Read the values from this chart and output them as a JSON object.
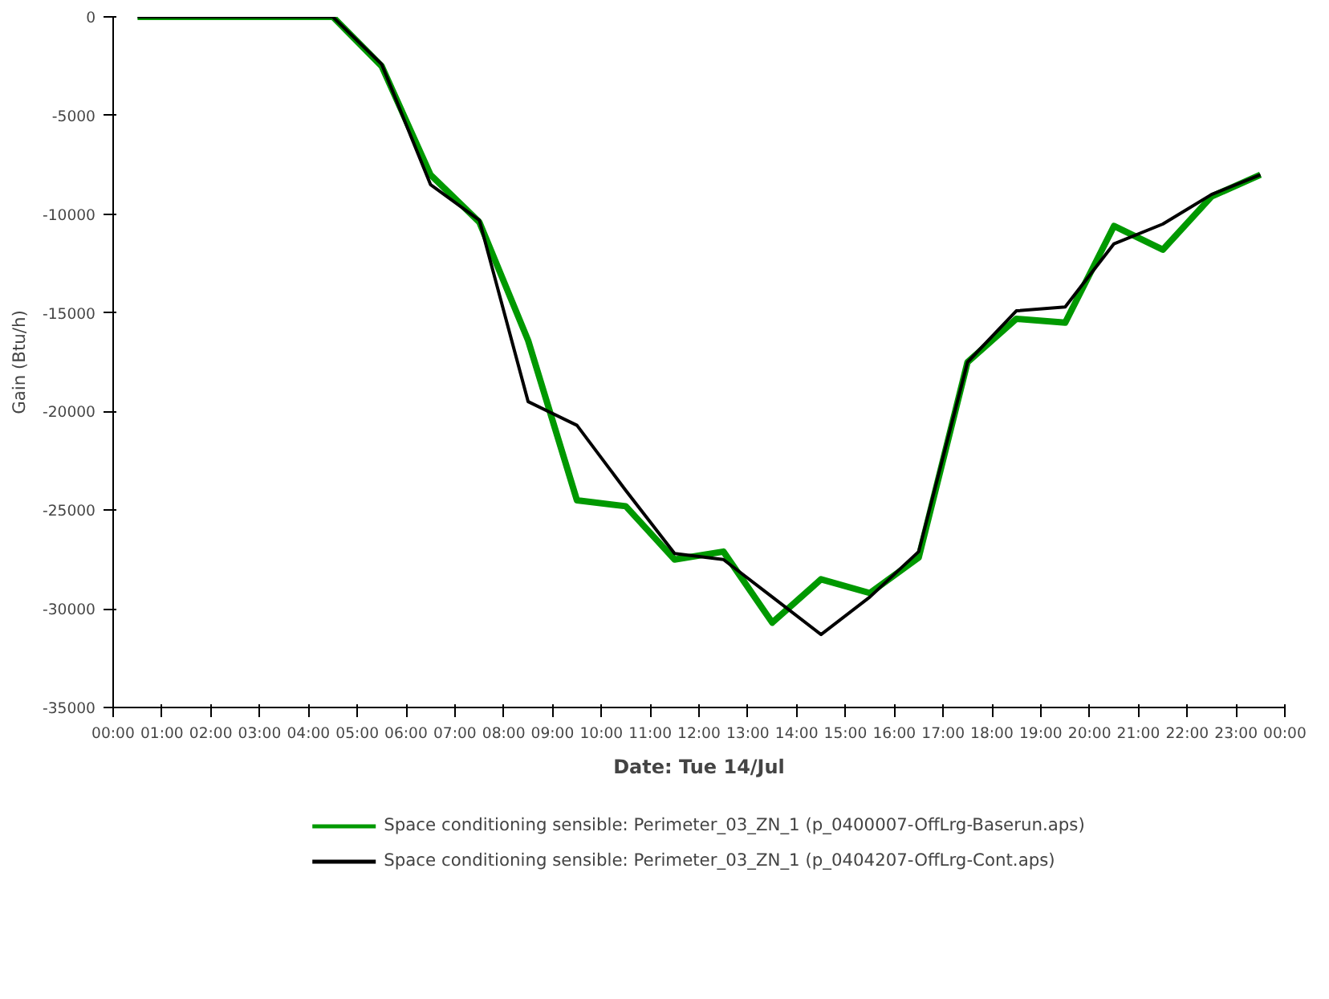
{
  "chart_data": {
    "type": "line",
    "xlabel": "Date: Tue 14/Jul",
    "ylabel": "Gain (Btu/h)",
    "x": [
      0.5,
      1.5,
      2.5,
      3.5,
      4.5,
      5.5,
      6.5,
      7.5,
      8.5,
      9.5,
      10.5,
      11.5,
      12.5,
      13.5,
      14.5,
      15.5,
      16.5,
      17.5,
      18.5,
      19.5,
      20.5,
      21.5,
      22.5,
      23.5
    ],
    "series": [
      {
        "name": "Space conditioning sensible: Perimeter_03_ZN_1 (p_0400007-OffLrg-Baserun.aps)",
        "color": "#009900",
        "values": [
          0,
          0,
          0,
          0,
          0,
          -2500,
          -8000,
          -10400,
          -16400,
          -24500,
          -24800,
          -27500,
          -27100,
          -30700,
          -28500,
          -29200,
          -27400,
          -17500,
          -15300,
          -15500,
          -10600,
          -11800,
          -9100,
          -8000
        ]
      },
      {
        "name": "Space conditioning sensible: Perimeter_03_ZN_1 (p_0404207-OffLrg-Cont.aps)",
        "color": "#000000",
        "values": [
          0,
          0,
          0,
          0,
          0,
          -2400,
          -8500,
          -10300,
          -19500,
          -20700,
          -24000,
          -27200,
          -27500,
          -29400,
          -31300,
          -29400,
          -27100,
          -17500,
          -14900,
          -14700,
          -11500,
          -10500,
          -9000,
          -8000
        ]
      }
    ],
    "xlim": [
      0,
      24
    ],
    "xticks": [
      {
        "value": 0,
        "label": "00:00"
      },
      {
        "value": 1,
        "label": "01:00"
      },
      {
        "value": 2,
        "label": "02:00"
      },
      {
        "value": 3,
        "label": "03:00"
      },
      {
        "value": 4,
        "label": "04:00"
      },
      {
        "value": 5,
        "label": "05:00"
      },
      {
        "value": 6,
        "label": "06:00"
      },
      {
        "value": 7,
        "label": "07:00"
      },
      {
        "value": 8,
        "label": "08:00"
      },
      {
        "value": 9,
        "label": "09:00"
      },
      {
        "value": 10,
        "label": "10:00"
      },
      {
        "value": 11,
        "label": "11:00"
      },
      {
        "value": 12,
        "label": "12:00"
      },
      {
        "value": 13,
        "label": "13:00"
      },
      {
        "value": 14,
        "label": "14:00"
      },
      {
        "value": 15,
        "label": "15:00"
      },
      {
        "value": 16,
        "label": "16:00"
      },
      {
        "value": 17,
        "label": "17:00"
      },
      {
        "value": 18,
        "label": "18:00"
      },
      {
        "value": 19,
        "label": "19:00"
      },
      {
        "value": 20,
        "label": "20:00"
      },
      {
        "value": 21,
        "label": "21:00"
      },
      {
        "value": 22,
        "label": "22:00"
      },
      {
        "value": 23,
        "label": "23:00"
      },
      {
        "value": 24,
        "label": "00:00"
      }
    ],
    "ylim": [
      -35000,
      0
    ],
    "yticks": [
      0,
      -5000,
      -10000,
      -15000,
      -20000,
      -25000,
      -30000,
      -35000
    ],
    "legend": "bottom",
    "grid": false,
    "marker": "none",
    "line_style": "solid"
  }
}
